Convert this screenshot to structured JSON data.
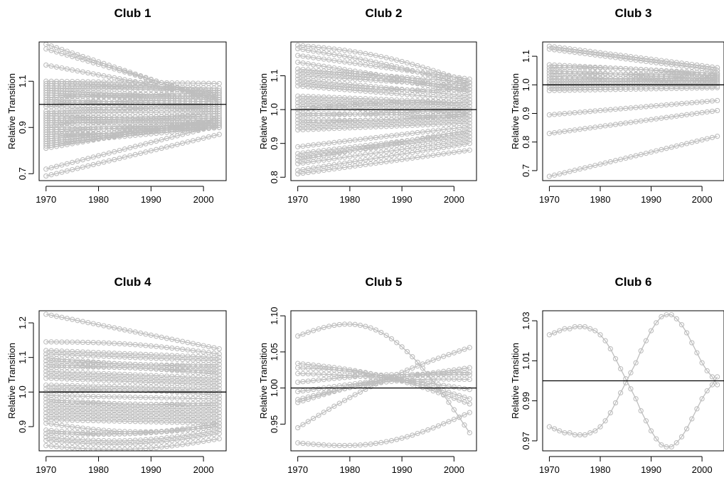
{
  "chart_data": [
    {
      "type": "line",
      "title": "Club 1",
      "xlabel": "",
      "ylabel": "Relative Transition",
      "xlim": [
        1970,
        2003
      ],
      "ylim": [
        0.67,
        1.27
      ],
      "xticks": [
        1970,
        1980,
        1990,
        2000
      ],
      "yticks": [
        0.7,
        0.9,
        1.1
      ],
      "hline": 1.0,
      "series_color": "#bebebe",
      "series": [
        {
          "start": 1.26,
          "end": 1.01,
          "bump": 0
        },
        {
          "start": 1.24,
          "end": 1.02,
          "bump": 0
        },
        {
          "start": 1.17,
          "end": 1.03,
          "bump": 0
        },
        {
          "start": 1.1,
          "end": 1.09,
          "bump": 0
        },
        {
          "start": 1.09,
          "end": 1.07,
          "bump": 0
        },
        {
          "start": 1.08,
          "end": 1.05,
          "bump": 0.01
        },
        {
          "start": 1.07,
          "end": 1.06,
          "bump": 0
        },
        {
          "start": 1.06,
          "end": 1.03,
          "bump": 0
        },
        {
          "start": 1.05,
          "end": 1.04,
          "bump": -0.01
        },
        {
          "start": 1.04,
          "end": 1.02,
          "bump": 0
        },
        {
          "start": 1.03,
          "end": 1.05,
          "bump": 0
        },
        {
          "start": 1.02,
          "end": 1.0,
          "bump": 0
        },
        {
          "start": 1.01,
          "end": 0.99,
          "bump": 0
        },
        {
          "start": 1.0,
          "end": 1.01,
          "bump": 0.01
        },
        {
          "start": 0.99,
          "end": 0.98,
          "bump": 0
        },
        {
          "start": 0.97,
          "end": 0.99,
          "bump": 0
        },
        {
          "start": 0.96,
          "end": 0.97,
          "bump": 0
        },
        {
          "start": 0.95,
          "end": 0.96,
          "bump": -0.01
        },
        {
          "start": 0.94,
          "end": 0.95,
          "bump": 0
        },
        {
          "start": 0.93,
          "end": 0.94,
          "bump": 0
        },
        {
          "start": 0.92,
          "end": 0.92,
          "bump": 0
        },
        {
          "start": 0.91,
          "end": 0.93,
          "bump": 0.01
        },
        {
          "start": 0.9,
          "end": 0.91,
          "bump": 0
        },
        {
          "start": 0.89,
          "end": 0.9,
          "bump": 0
        },
        {
          "start": 0.88,
          "end": 0.92,
          "bump": 0
        },
        {
          "start": 0.87,
          "end": 0.91,
          "bump": -0.01
        },
        {
          "start": 0.86,
          "end": 0.9,
          "bump": 0
        },
        {
          "start": 0.85,
          "end": 0.92,
          "bump": 0
        },
        {
          "start": 0.84,
          "end": 0.91,
          "bump": 0
        },
        {
          "start": 0.83,
          "end": 0.9,
          "bump": 0
        },
        {
          "start": 0.82,
          "end": 0.93,
          "bump": 0
        },
        {
          "start": 0.81,
          "end": 0.94,
          "bump": 0
        },
        {
          "start": 0.72,
          "end": 0.91,
          "bump": 0
        },
        {
          "start": 0.69,
          "end": 0.87,
          "bump": 0
        }
      ]
    },
    {
      "type": "line",
      "title": "Club 2",
      "xlabel": "",
      "ylabel": "Relative Transition",
      "xlim": [
        1970,
        2003
      ],
      "ylim": [
        0.79,
        1.2
      ],
      "xticks": [
        1970,
        1980,
        1990,
        2000
      ],
      "yticks": [
        0.8,
        0.9,
        1.0,
        1.1
      ],
      "hline": 1.0,
      "series_color": "#bebebe",
      "series": [
        {
          "start": 1.19,
          "end": 1.08,
          "bump": 0.02
        },
        {
          "start": 1.18,
          "end": 1.07,
          "bump": 0.01
        },
        {
          "start": 1.16,
          "end": 1.09,
          "bump": 0
        },
        {
          "start": 1.14,
          "end": 1.06,
          "bump": 0
        },
        {
          "start": 1.12,
          "end": 1.08,
          "bump": 0
        },
        {
          "start": 1.11,
          "end": 1.05,
          "bump": 0.01
        },
        {
          "start": 1.1,
          "end": 1.07,
          "bump": 0
        },
        {
          "start": 1.09,
          "end": 1.04,
          "bump": 0
        },
        {
          "start": 1.08,
          "end": 1.06,
          "bump": -0.01
        },
        {
          "start": 1.07,
          "end": 1.03,
          "bump": 0
        },
        {
          "start": 1.04,
          "end": 1.02,
          "bump": 0
        },
        {
          "start": 1.03,
          "end": 1.01,
          "bump": 0
        },
        {
          "start": 1.02,
          "end": 1.0,
          "bump": 0
        },
        {
          "start": 1.01,
          "end": 0.99,
          "bump": 0
        },
        {
          "start": 1.0,
          "end": 1.02,
          "bump": 0.01
        },
        {
          "start": 0.99,
          "end": 0.98,
          "bump": 0
        },
        {
          "start": 0.98,
          "end": 1.0,
          "bump": 0
        },
        {
          "start": 0.97,
          "end": 0.99,
          "bump": -0.01
        },
        {
          "start": 0.96,
          "end": 0.98,
          "bump": 0
        },
        {
          "start": 0.95,
          "end": 0.97,
          "bump": 0
        },
        {
          "start": 0.94,
          "end": 0.96,
          "bump": 0
        },
        {
          "start": 0.89,
          "end": 0.95,
          "bump": 0
        },
        {
          "start": 0.87,
          "end": 0.93,
          "bump": 0
        },
        {
          "start": 0.86,
          "end": 0.92,
          "bump": 0
        },
        {
          "start": 0.85,
          "end": 0.94,
          "bump": 0
        },
        {
          "start": 0.84,
          "end": 0.91,
          "bump": 0
        },
        {
          "start": 0.82,
          "end": 0.9,
          "bump": 0
        },
        {
          "start": 0.81,
          "end": 0.88,
          "bump": 0
        }
      ]
    },
    {
      "type": "line",
      "title": "Club 3",
      "xlabel": "",
      "ylabel": "Relative Transition",
      "xlim": [
        1970,
        2003
      ],
      "ylim": [
        0.665,
        1.15
      ],
      "xticks": [
        1970,
        1980,
        1990,
        2000
      ],
      "yticks": [
        0.7,
        0.8,
        0.9,
        1.0,
        1.1
      ],
      "hline": 1.0,
      "series_color": "#bebebe",
      "series": [
        {
          "start": 1.135,
          "end": 1.06,
          "bump": 0
        },
        {
          "start": 1.125,
          "end": 1.05,
          "bump": 0
        },
        {
          "start": 1.07,
          "end": 1.04,
          "bump": 0
        },
        {
          "start": 1.06,
          "end": 1.03,
          "bump": 0.01
        },
        {
          "start": 1.05,
          "end": 1.02,
          "bump": 0
        },
        {
          "start": 1.04,
          "end": 1.035,
          "bump": 0
        },
        {
          "start": 1.03,
          "end": 1.01,
          "bump": 0
        },
        {
          "start": 1.02,
          "end": 1.025,
          "bump": 0
        },
        {
          "start": 1.01,
          "end": 1.015,
          "bump": 0
        },
        {
          "start": 1.0,
          "end": 1.005,
          "bump": 0
        },
        {
          "start": 0.99,
          "end": 0.995,
          "bump": 0
        },
        {
          "start": 0.98,
          "end": 0.99,
          "bump": 0
        },
        {
          "start": 0.895,
          "end": 0.945,
          "bump": 0
        },
        {
          "start": 0.83,
          "end": 0.91,
          "bump": 0
        },
        {
          "start": 0.68,
          "end": 0.82,
          "bump": 0
        }
      ]
    },
    {
      "type": "line",
      "title": "Club 4",
      "xlabel": "",
      "ylabel": "Relative Transition",
      "xlim": [
        1970,
        2003
      ],
      "ylim": [
        0.83,
        1.235
      ],
      "xticks": [
        1970,
        1980,
        1990,
        2000
      ],
      "yticks": [
        0.9,
        1.0,
        1.1,
        1.2
      ],
      "hline": 1.0,
      "series_color": "#bebebe",
      "series": [
        {
          "start": 1.225,
          "end": 1.125,
          "bump": 0
        },
        {
          "start": 1.145,
          "end": 1.11,
          "bump": 0.01
        },
        {
          "start": 1.12,
          "end": 1.1,
          "bump": 0
        },
        {
          "start": 1.11,
          "end": 1.09,
          "bump": 0
        },
        {
          "start": 1.1,
          "end": 1.08,
          "bump": -0.01
        },
        {
          "start": 1.09,
          "end": 1.07,
          "bump": 0
        },
        {
          "start": 1.08,
          "end": 1.06,
          "bump": 0
        },
        {
          "start": 1.07,
          "end": 1.05,
          "bump": 0.01
        },
        {
          "start": 1.06,
          "end": 1.04,
          "bump": 0
        },
        {
          "start": 1.05,
          "end": 1.03,
          "bump": 0
        },
        {
          "start": 1.04,
          "end": 1.02,
          "bump": 0
        },
        {
          "start": 1.02,
          "end": 1.01,
          "bump": 0
        },
        {
          "start": 1.01,
          "end": 1.0,
          "bump": 0
        },
        {
          "start": 1.0,
          "end": 0.99,
          "bump": 0.01
        },
        {
          "start": 0.99,
          "end": 0.98,
          "bump": 0
        },
        {
          "start": 0.98,
          "end": 0.97,
          "bump": -0.01
        },
        {
          "start": 0.97,
          "end": 0.96,
          "bump": 0
        },
        {
          "start": 0.96,
          "end": 0.95,
          "bump": 0
        },
        {
          "start": 0.95,
          "end": 0.94,
          "bump": 0
        },
        {
          "start": 0.94,
          "end": 0.93,
          "bump": 0
        },
        {
          "start": 0.93,
          "end": 0.92,
          "bump": 0
        },
        {
          "start": 0.92,
          "end": 0.91,
          "bump": 0
        },
        {
          "start": 0.91,
          "end": 0.9,
          "bump": -0.02
        },
        {
          "start": 0.89,
          "end": 0.91,
          "bump": -0.02
        },
        {
          "start": 0.88,
          "end": 0.9,
          "bump": -0.01
        },
        {
          "start": 0.87,
          "end": 0.89,
          "bump": -0.02
        },
        {
          "start": 0.86,
          "end": 0.88,
          "bump": -0.02
        },
        {
          "start": 0.845,
          "end": 0.865,
          "bump": -0.02
        }
      ]
    },
    {
      "type": "line",
      "title": "Club 5",
      "xlabel": "",
      "ylabel": "Relative Transition",
      "xlim": [
        1970,
        2003
      ],
      "ylim": [
        0.913,
        1.107
      ],
      "xticks": [
        1970,
        1980,
        1990,
        2000
      ],
      "yticks": [
        0.95,
        1.0,
        1.05,
        1.1
      ],
      "hline": 1.0,
      "series_color": "#bebebe",
      "series": [
        {
          "start": 1.072,
          "end": 0.938,
          "bump": 0.07
        },
        {
          "start": 1.034,
          "end": 0.978,
          "bump": 0.01
        },
        {
          "start": 1.028,
          "end": 0.985,
          "bump": 0.01
        },
        {
          "start": 1.02,
          "end": 0.998,
          "bump": 0.005
        },
        {
          "start": 1.008,
          "end": 1.018,
          "bump": 0.005
        },
        {
          "start": 0.995,
          "end": 1.028,
          "bump": 0
        },
        {
          "start": 0.984,
          "end": 1.012,
          "bump": 0.01
        },
        {
          "start": 0.98,
          "end": 1.022,
          "bump": 0.01
        },
        {
          "start": 0.945,
          "end": 1.056,
          "bump": 0.01
        },
        {
          "start": 0.924,
          "end": 0.966,
          "bump": -0.02
        }
      ]
    },
    {
      "type": "line",
      "title": "Club 6",
      "xlabel": "",
      "ylabel": "Relative Transition",
      "xlim": [
        1970,
        2003
      ],
      "ylim": [
        0.965,
        1.035
      ],
      "xticks": [
        1970,
        1980,
        1990,
        2000
      ],
      "yticks": [
        0.97,
        0.99,
        1.01,
        1.03
      ],
      "hline": 1.0,
      "series_color": "#bebebe",
      "series": [
        {
          "values": [
            1.023,
            1.024,
            1.025,
            1.026,
            1.026,
            1.027,
            1.027,
            1.027,
            1.026,
            1.025,
            1.023,
            1.02,
            1.016,
            1.011,
            1.006,
            1.001,
            0.996,
            0.991,
            0.985,
            0.98,
            0.975,
            0.971,
            0.968,
            0.967,
            0.967,
            0.969,
            0.972,
            0.976,
            0.981,
            0.986,
            0.991,
            0.995,
            0.998,
            1.002
          ]
        },
        {
          "values": [
            0.977,
            0.976,
            0.975,
            0.974,
            0.974,
            0.973,
            0.973,
            0.973,
            0.974,
            0.975,
            0.977,
            0.98,
            0.984,
            0.989,
            0.994,
            0.999,
            1.004,
            1.009,
            1.015,
            1.02,
            1.025,
            1.029,
            1.032,
            1.033,
            1.033,
            1.031,
            1.028,
            1.024,
            1.019,
            1.014,
            1.009,
            1.005,
            1.002,
            0.998
          ]
        }
      ]
    }
  ]
}
